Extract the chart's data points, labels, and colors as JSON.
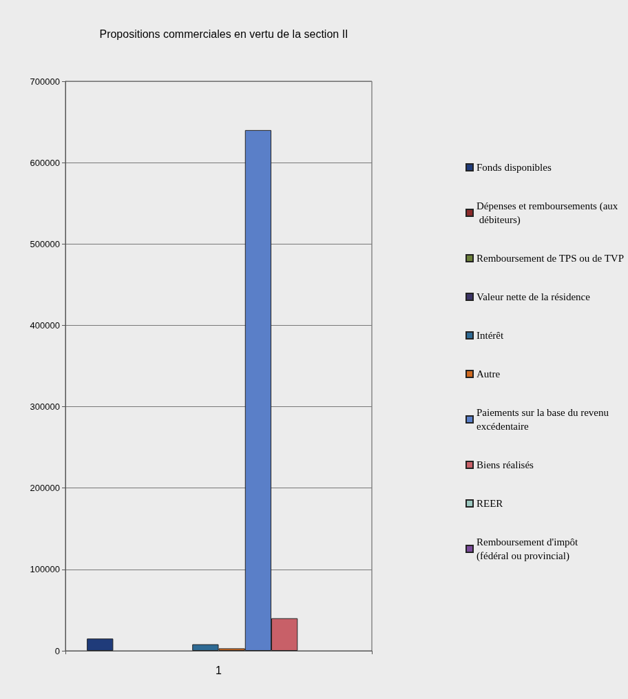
{
  "chart_data": {
    "type": "bar",
    "title": "Propositions commerciales en vertu de la section II",
    "categories": [
      "1"
    ],
    "series": [
      {
        "name": "Fonds disponibles",
        "color": "#1f3b7a",
        "values": [
          15000
        ]
      },
      {
        "name": "Dépenses et remboursements (aux débiteurs)",
        "color": "#8b2a2a",
        "values": [
          0
        ]
      },
      {
        "name": "Remboursement de TPS ou de TVP",
        "color": "#6b7f3a",
        "values": [
          0
        ]
      },
      {
        "name": "Valeur nette de la résidence",
        "color": "#3c3466",
        "values": [
          0
        ]
      },
      {
        "name": "Intérêt",
        "color": "#2e6a94",
        "values": [
          8000
        ]
      },
      {
        "name": "Autre",
        "color": "#d06a20",
        "values": [
          3000
        ]
      },
      {
        "name": "Paiements sur la base du revenu excédentaire",
        "color": "#5a7fc8",
        "values": [
          640000
        ]
      },
      {
        "name": "Biens réalisés",
        "color": "#c86068",
        "values": [
          40000
        ]
      },
      {
        "name": "REER",
        "color": "#9cc8c0",
        "values": [
          0
        ]
      },
      {
        "name": "Remboursement d'impôt (fédéral ou provincial)",
        "color": "#7a4a9a",
        "values": [
          0
        ]
      }
    ],
    "ylim": [
      0,
      700000
    ],
    "yticks": [
      0,
      100000,
      200000,
      300000,
      400000,
      500000,
      600000,
      700000
    ],
    "grid": "y",
    "legend": "right"
  }
}
